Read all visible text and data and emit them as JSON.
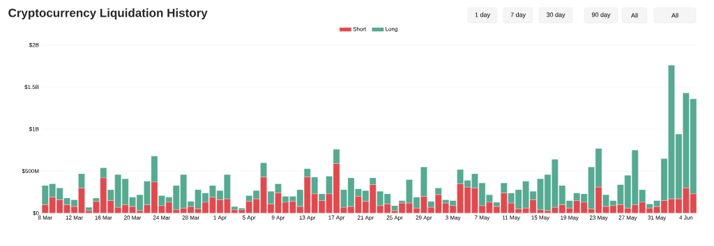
{
  "chart_data": {
    "type": "bar",
    "title": "Cryptocurrency Liquidation History",
    "categories": [
      "8 Mar",
      null,
      null,
      null,
      "12 Mar",
      null,
      null,
      null,
      "16 Mar",
      null,
      null,
      null,
      "20 Mar",
      null,
      null,
      null,
      "24 Mar",
      null,
      null,
      null,
      "28 Mar",
      null,
      null,
      null,
      "1 Apr",
      null,
      null,
      null,
      "5 Apr",
      null,
      null,
      null,
      "9 Apr",
      null,
      null,
      null,
      "13 Apr",
      null,
      null,
      null,
      "17 Apr",
      null,
      null,
      null,
      "21 Apr",
      null,
      null,
      null,
      "25 Apr",
      null,
      null,
      null,
      "29 Apr",
      null,
      null,
      null,
      "3 May",
      null,
      null,
      null,
      "7 May",
      null,
      null,
      null,
      "11 May",
      null,
      null,
      null,
      "15 May",
      null,
      null,
      null,
      "19 May",
      null,
      null,
      null,
      "23 May",
      null,
      null,
      null,
      "27 May",
      null,
      null,
      null,
      "31 May",
      null,
      null,
      null,
      "4 Jun",
      null
    ],
    "series": [
      {
        "name": "Short",
        "color": "#e04a4e",
        "values": [
          100000000.0,
          190000000.0,
          160000000.0,
          100000000.0,
          80000000.0,
          300000000.0,
          30000000.0,
          140000000.0,
          420000000.0,
          150000000.0,
          70000000.0,
          100000000.0,
          80000000.0,
          30000000.0,
          100000000.0,
          370000000.0,
          90000000.0,
          130000000.0,
          40000000.0,
          60000000.0,
          80000000.0,
          50000000.0,
          130000000.0,
          190000000.0,
          160000000.0,
          170000000.0,
          40000000.0,
          40000000.0,
          140000000.0,
          170000000.0,
          430000000.0,
          110000000.0,
          240000000.0,
          130000000.0,
          140000000.0,
          80000000.0,
          430000000.0,
          230000000.0,
          150000000.0,
          230000000.0,
          590000000.0,
          70000000.0,
          80000000.0,
          200000000.0,
          140000000.0,
          340000000.0,
          90000000.0,
          110000000.0,
          30000000.0,
          120000000.0,
          120000000.0,
          60000000.0,
          200000000.0,
          70000000.0,
          220000000.0,
          120000000.0,
          90000000.0,
          350000000.0,
          310000000.0,
          300000000.0,
          90000000.0,
          130000000.0,
          80000000.0,
          240000000.0,
          120000000.0,
          50000000.0,
          60000000.0,
          160000000.0,
          40000000.0,
          30000000.0,
          70000000.0,
          100000000.0,
          60000000.0,
          150000000.0,
          130000000.0,
          50000000.0,
          310000000.0,
          80000000.0,
          90000000.0,
          100000000.0,
          60000000.0,
          100000000.0,
          130000000.0,
          60000000.0,
          80000000.0,
          150000000.0,
          170000000.0,
          170000000.0,
          300000000.0,
          230000000.0
        ]
      },
      {
        "name": "Long",
        "color": "#55aa91",
        "values": [
          230000000.0,
          160000000.0,
          140000000.0,
          80000000.0,
          80000000.0,
          170000000.0,
          40000000.0,
          40000000.0,
          120000000.0,
          130000000.0,
          390000000.0,
          310000000.0,
          110000000.0,
          190000000.0,
          280000000.0,
          310000000.0,
          120000000.0,
          60000000.0,
          290000000.0,
          400000000.0,
          60000000.0,
          230000000.0,
          110000000.0,
          140000000.0,
          110000000.0,
          290000000.0,
          40000000.0,
          20000000.0,
          70000000.0,
          100000000.0,
          170000000.0,
          150000000.0,
          110000000.0,
          70000000.0,
          60000000.0,
          200000000.0,
          100000000.0,
          200000000.0,
          80000000.0,
          210000000.0,
          170000000.0,
          210000000.0,
          340000000.0,
          90000000.0,
          130000000.0,
          80000000.0,
          170000000.0,
          120000000.0,
          60000000.0,
          30000000.0,
          280000000.0,
          130000000.0,
          350000000.0,
          70000000.0,
          80000000.0,
          40000000.0,
          60000000.0,
          170000000.0,
          80000000.0,
          170000000.0,
          270000000.0,
          90000000.0,
          50000000.0,
          120000000.0,
          120000000.0,
          230000000.0,
          320000000.0,
          100000000.0,
          370000000.0,
          430000000.0,
          570000000.0,
          230000000.0,
          90000000.0,
          90000000.0,
          100000000.0,
          500000000.0,
          460000000.0,
          140000000.0,
          60000000.0,
          240000000.0,
          390000000.0,
          650000000.0,
          150000000.0,
          50000000.0,
          70000000.0,
          500000000.0,
          1590000000.0,
          770000000.0,
          1130000000.0,
          1130000000.0
        ]
      }
    ],
    "stacked": true,
    "ylim": [
      0,
      2000000000
    ],
    "yticks": [
      {
        "value": 0,
        "label": "$0"
      },
      {
        "value": 500000000,
        "label": "$500M"
      },
      {
        "value": 1000000000,
        "label": "$1B"
      },
      {
        "value": 1500000000,
        "label": "$1.5B"
      },
      {
        "value": 2000000000,
        "label": "$2B"
      }
    ],
    "grid": "y",
    "legend": "top",
    "annotations": [
      "1 day",
      "7 day",
      "30 day",
      "90 day",
      "All",
      "All"
    ]
  }
}
